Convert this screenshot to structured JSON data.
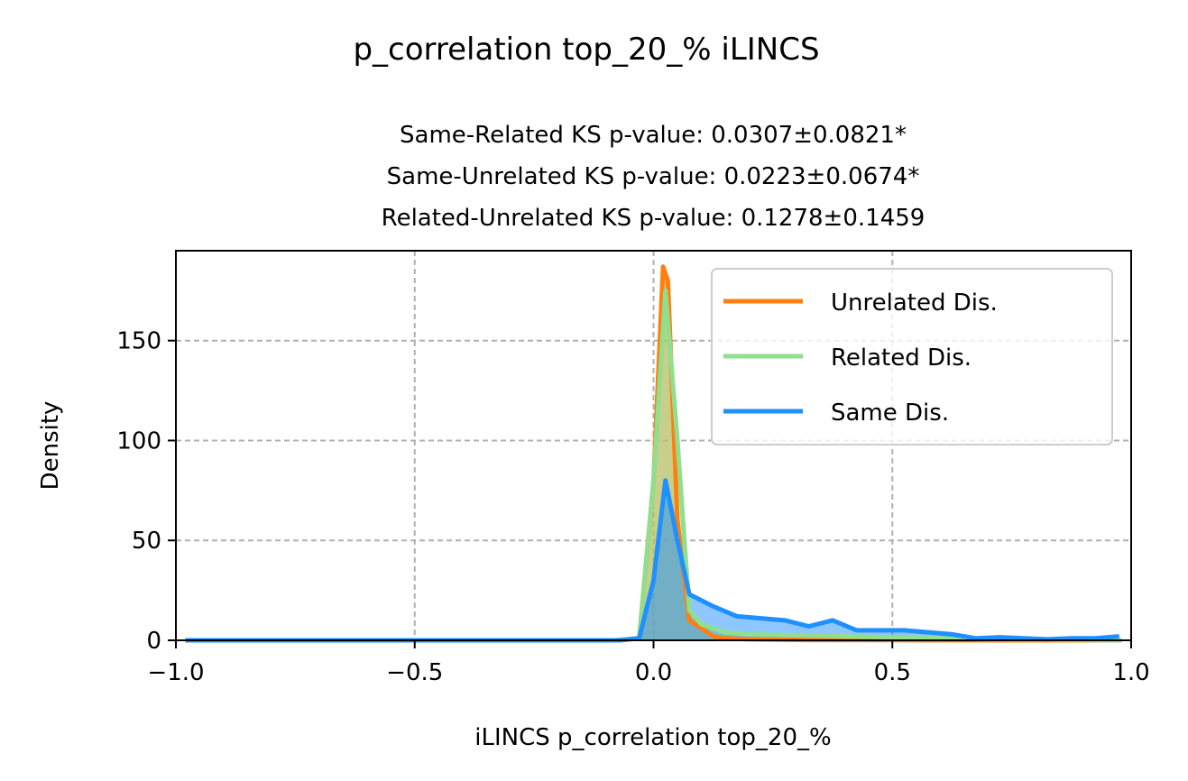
{
  "chart_data": {
    "type": "line",
    "title": "p_correlation top_20_% iLINCS",
    "subtitle_lines": [
      "Same-Related KS p-value: 0.0307±0.0821*",
      "Same-Unrelated KS p-value: 0.0223±0.0674*",
      "Related-Unrelated KS p-value: 0.1278±0.1459"
    ],
    "xlabel": "iLINCS p_correlation top_20_%",
    "ylabel": "Density",
    "xlim": [
      -1.0,
      1.0
    ],
    "ylim": [
      0,
      195
    ],
    "xticks": [
      -1.0,
      -0.5,
      0.0,
      0.5,
      1.0
    ],
    "xtick_labels": [
      "−1.0",
      "−0.5",
      "0.0",
      "0.5",
      "1.0"
    ],
    "yticks": [
      0,
      50,
      100,
      150
    ],
    "ytick_labels": [
      "0",
      "50",
      "100",
      "150"
    ],
    "grid": true,
    "legend_position": "upper right",
    "series": [
      {
        "name": "Unrelated Dis.",
        "color": "#ff7f0e",
        "x": [
          -0.98,
          -0.5,
          -0.08,
          -0.03,
          0.0,
          0.02,
          0.03,
          0.05,
          0.075,
          0.1,
          0.125,
          0.15,
          0.2,
          0.3,
          0.5,
          0.75,
          0.98
        ],
        "y": [
          0,
          0,
          0,
          1,
          80,
          187,
          180,
          60,
          10,
          6,
          2,
          1,
          0.5,
          0.2,
          0.1,
          0,
          0
        ]
      },
      {
        "name": "Related Dis.",
        "color": "#8fdf8f",
        "x": [
          -0.98,
          -0.5,
          -0.08,
          -0.03,
          0.0,
          0.025,
          0.05,
          0.075,
          0.1,
          0.15,
          0.2,
          0.3,
          0.4,
          0.5,
          0.6,
          0.7,
          0.98
        ],
        "y": [
          0,
          0,
          0,
          1,
          80,
          175,
          100,
          15,
          8,
          4,
          3,
          2.5,
          2,
          1.5,
          1,
          0.5,
          0
        ]
      },
      {
        "name": "Same Dis.",
        "color": "#1e90ff",
        "x": [
          -0.98,
          -0.5,
          -0.07,
          -0.03,
          0.0,
          0.025,
          0.05,
          0.075,
          0.125,
          0.175,
          0.225,
          0.275,
          0.325,
          0.375,
          0.425,
          0.475,
          0.525,
          0.575,
          0.625,
          0.675,
          0.725,
          0.775,
          0.825,
          0.875,
          0.925,
          0.975
        ],
        "y": [
          0,
          0,
          0,
          1,
          30,
          80,
          50,
          23,
          17,
          12,
          11,
          10,
          7,
          10,
          5,
          5,
          5,
          4,
          3,
          1,
          1.5,
          1,
          0.5,
          1,
          1,
          2
        ]
      }
    ]
  }
}
